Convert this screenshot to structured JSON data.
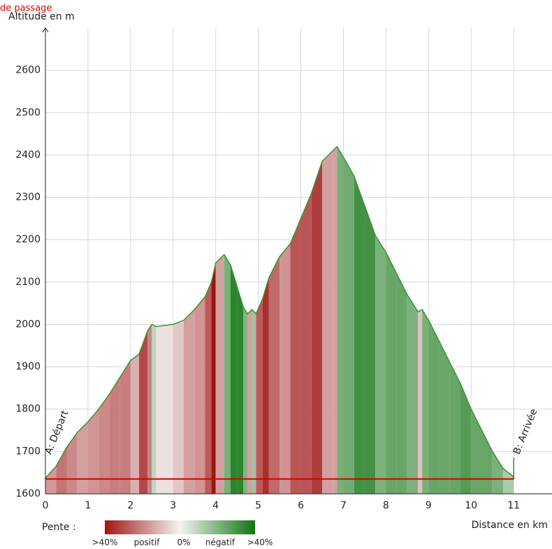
{
  "chart_data": {
    "type": "area",
    "y_label": "Altitude en m",
    "x_label": "Distance en km",
    "x": [
      0,
      0.25,
      0.5,
      0.75,
      1.0,
      1.25,
      1.5,
      1.75,
      2.0,
      2.2,
      2.4,
      2.5,
      2.6,
      3.0,
      3.25,
      3.5,
      3.75,
      3.9,
      4.0,
      4.2,
      4.35,
      4.5,
      4.65,
      4.75,
      4.85,
      4.95,
      5.1,
      5.25,
      5.5,
      5.75,
      6.0,
      6.25,
      6.5,
      6.75,
      6.85,
      7.0,
      7.25,
      7.5,
      7.75,
      8.0,
      8.25,
      8.5,
      8.75,
      8.85,
      9.0,
      9.25,
      9.5,
      9.75,
      10.0,
      10.25,
      10.5,
      10.75,
      11.0
    ],
    "series": [
      {
        "color": "#2e9a2e",
        "values": [
          1637,
          1665,
          1710,
          1745,
          1770,
          1800,
          1835,
          1875,
          1915,
          1930,
          1985,
          2000,
          1995,
          2000,
          2010,
          2035,
          2065,
          2100,
          2145,
          2165,
          2140,
          2090,
          2040,
          2025,
          2035,
          2025,
          2060,
          2110,
          2160,
          2190,
          2250,
          2310,
          2385,
          2410,
          2420,
          2395,
          2350,
          2280,
          2210,
          2170,
          2120,
          2070,
          2030,
          2035,
          2010,
          1960,
          1910,
          1860,
          1800,
          1750,
          1700,
          1660,
          1640
        ]
      }
    ],
    "xlim": [
      0,
      11.9
    ],
    "xticks": [
      0,
      1,
      2,
      3,
      4,
      5,
      6,
      7,
      8,
      9,
      10,
      11
    ],
    "ylim": [
      1600,
      2700
    ],
    "yticks": [
      1600,
      1700,
      1800,
      1900,
      2000,
      2100,
      2200,
      2300,
      2400,
      2500,
      2600
    ],
    "grid": true,
    "reference_line": {
      "label": "de passage",
      "value": 1635,
      "color": "#d40000"
    },
    "markers": [
      {
        "label": "A: Départ",
        "x": 0
      },
      {
        "label": "B: Arrivée",
        "x": 11
      }
    ],
    "legend": {
      "title": "Pente :",
      "labels": [
        ">40%",
        "positif",
        "0%",
        "négatif",
        ">40%"
      ]
    }
  }
}
